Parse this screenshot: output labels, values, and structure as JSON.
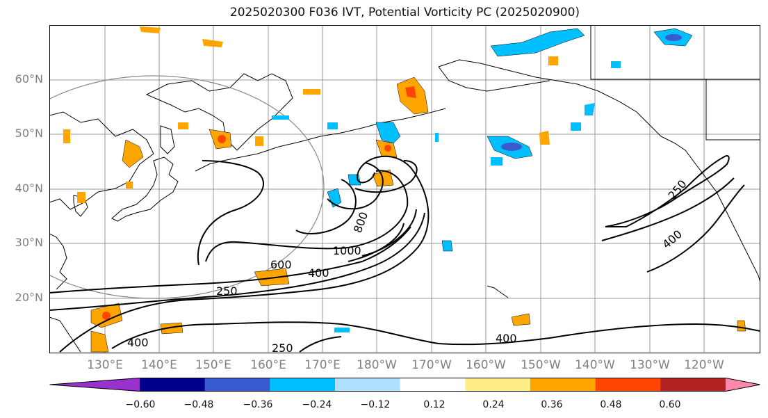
{
  "title": "2025020300 F036 IVT, Potential Vorticity PC (2025020900)",
  "lat_labels": [
    "60°N",
    "50°N",
    "40°N",
    "30°N",
    "20°N"
  ],
  "lon_labels": [
    "130°E",
    "140°E",
    "150°E",
    "160°E",
    "170°E",
    "180°W",
    "170°W",
    "160°W",
    "150°W",
    "140°W",
    "130°W",
    "120°W"
  ],
  "contour_labels": [
    "250",
    "400",
    "600",
    "1000",
    "800",
    "400",
    "250",
    "400",
    "250",
    "400"
  ],
  "colorbar": {
    "ticks": [
      "−0.60",
      "−0.48",
      "−0.36",
      "−0.24",
      "−0.12",
      "0.12",
      "0.24",
      "0.36",
      "0.48",
      "0.60"
    ],
    "colors": [
      "#9932cc",
      "#00008b",
      "#3a5bd0",
      "#00bfff",
      "#b0e0ff",
      "#ffffff",
      "#ffee88",
      "#ffa500",
      "#ff4500",
      "#b22222",
      "#ff88aa"
    ]
  },
  "colors": {
    "pos_low": "#ffee88",
    "pos_mid": "#ffa500",
    "pos_high": "#ff4500",
    "neg_low": "#b0e0ff",
    "neg_mid": "#00bfff",
    "neg_high": "#3a5bd0"
  }
}
